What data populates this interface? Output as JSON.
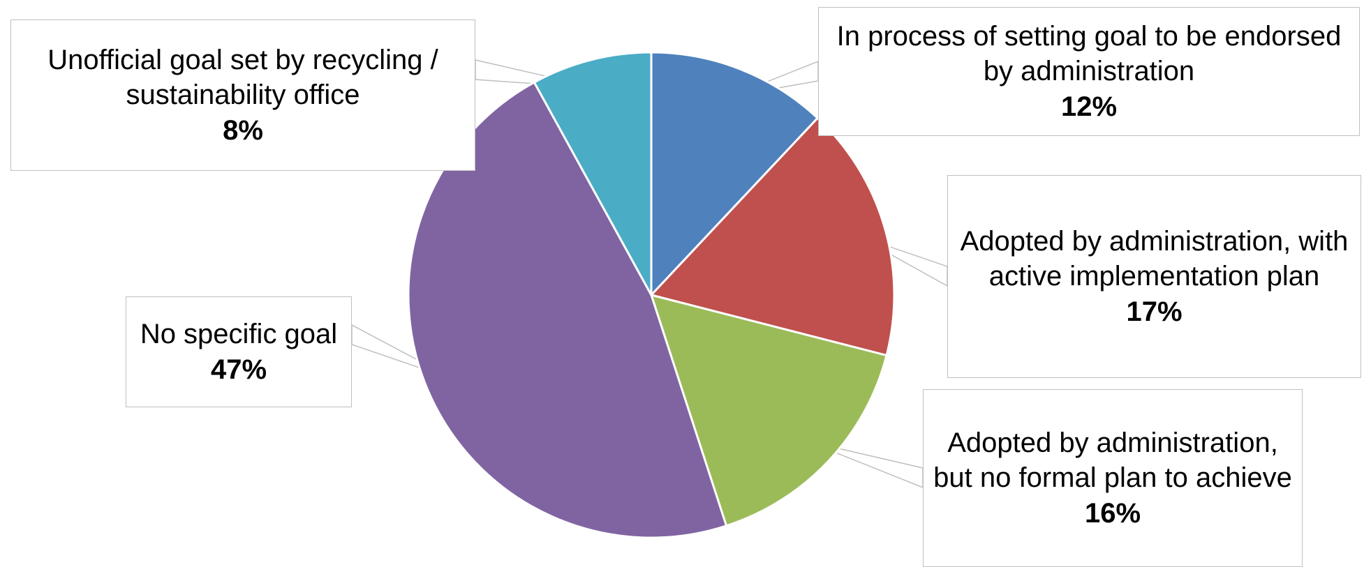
{
  "chart_data": {
    "type": "pie",
    "title": "",
    "start_angle_deg": 0,
    "direction": "clockwise",
    "slices": [
      {
        "label": "In process of setting goal to be endorsed by administration",
        "value": 12,
        "display": "12%",
        "color": "#4F81BD"
      },
      {
        "label": "Adopted by administration, with active implementation plan",
        "value": 17,
        "display": "17%",
        "color": "#C0504D"
      },
      {
        "label": "Adopted by administration, but no formal plan to achieve",
        "value": 16,
        "display": "16%",
        "color": "#9BBB59"
      },
      {
        "label": "No specific goal",
        "value": 47,
        "display": "47%",
        "color": "#8064A2"
      },
      {
        "label": "Unofficial goal set by recycling / sustainability office",
        "value": 8,
        "display": "8%",
        "color": "#4BACC6"
      }
    ],
    "legend": "none",
    "data_labels": "callouts"
  }
}
